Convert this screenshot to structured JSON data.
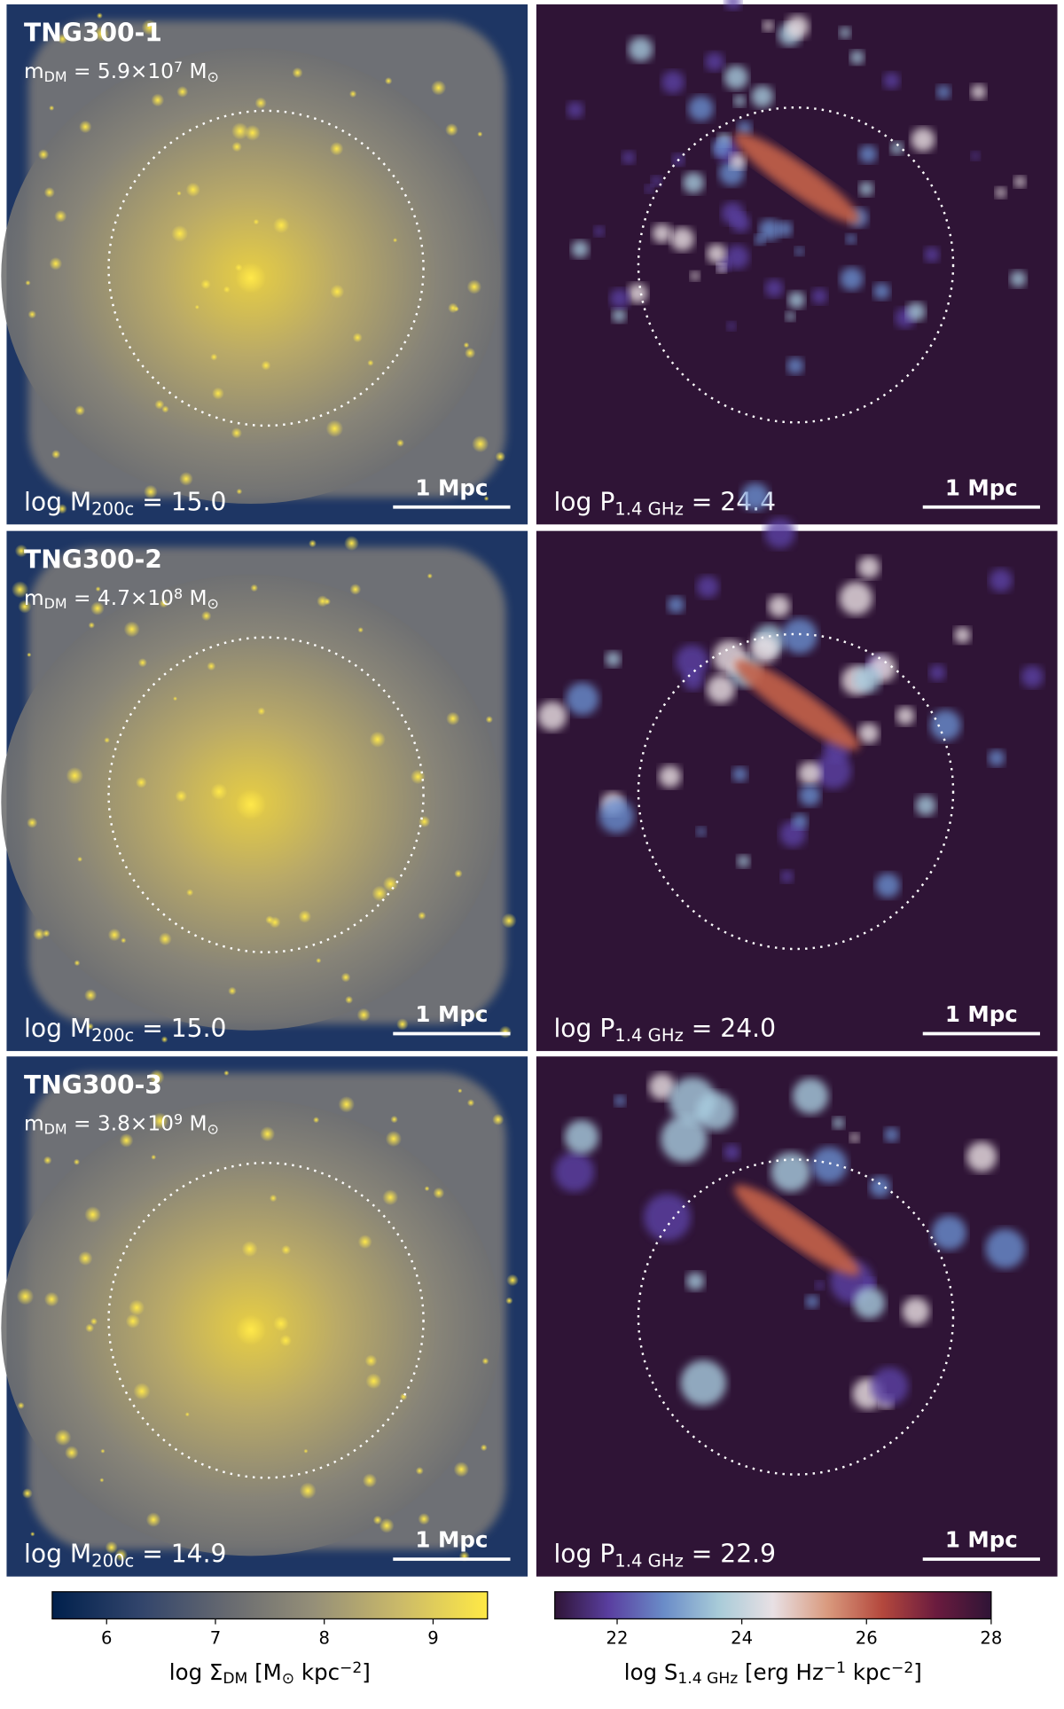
{
  "panels": [
    {
      "title": "TNG300-1",
      "mdm": {
        "label": "m",
        "sub": "DM",
        "eq": " = 5.9×10",
        "exp": "7",
        "unit": " M",
        "unit_sym": "⊙"
      },
      "mass": {
        "label": "log M",
        "sub": "200c",
        "eq": " = 15.0"
      },
      "radio": {
        "label": "log P",
        "sub": "1.4 GHz",
        "eq": " = 24.4"
      },
      "scale_bar": "1 Mpc",
      "radio_scale_bar": "1 Mpc"
    },
    {
      "title": "TNG300-2",
      "mdm": {
        "label": "m",
        "sub": "DM",
        "eq": " = 4.7×10",
        "exp": "8",
        "unit": " M",
        "unit_sym": "⊙"
      },
      "mass": {
        "label": "log M",
        "sub": "200c",
        "eq": " = 15.0"
      },
      "radio": {
        "label": "log P",
        "sub": "1.4 GHz",
        "eq": " = 24.0"
      },
      "scale_bar": "1 Mpc",
      "radio_scale_bar": "1 Mpc"
    },
    {
      "title": "TNG300-3",
      "mdm": {
        "label": "m",
        "sub": "DM",
        "eq": " = 3.8×10",
        "exp": "9",
        "unit": " M",
        "unit_sym": "⊙"
      },
      "mass": {
        "label": "log M",
        "sub": "200c",
        "eq": " = 14.9"
      },
      "radio": {
        "label": "log P",
        "sub": "1.4 GHz",
        "eq": " = 22.9"
      },
      "scale_bar": "1 Mpc",
      "radio_scale_bar": "1 Mpc"
    }
  ],
  "colorbars": [
    {
      "label": {
        "pre": "log Σ",
        "sub": "DM",
        "mid": " [M",
        "sym": "⊙",
        "post": " kpc",
        "sup": "−2",
        "end": "]"
      },
      "lim": [
        5.5,
        9.5
      ],
      "ticks": [
        6,
        7,
        8,
        9
      ],
      "colors": [
        "#00204c",
        "#31446b",
        "#666970",
        "#958f78",
        "#cbba69",
        "#ffe945"
      ]
    },
    {
      "label": {
        "pre": "log S",
        "sub": "1.4 GHz",
        "mid": " [erg Hz",
        "sup1": "−1",
        "post": " kpc",
        "sup": "−2",
        "end": "]"
      },
      "lim": [
        21,
        28
      ],
      "ticks": [
        22,
        24,
        26,
        28
      ],
      "colors": [
        "#2f1436",
        "#5a3fa0",
        "#6a8cc8",
        "#a8cbd8",
        "#e8e0e4",
        "#d99a7e",
        "#b4483d",
        "#6a1b3e",
        "#2f1436"
      ]
    }
  ]
}
